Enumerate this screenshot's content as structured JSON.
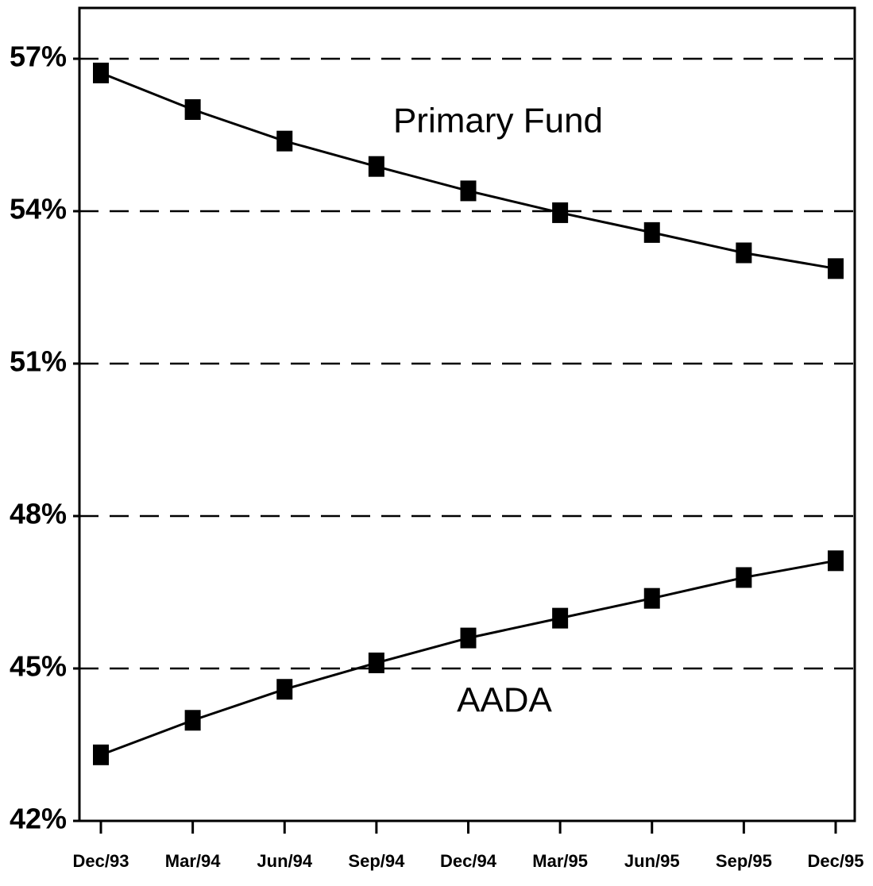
{
  "chart_data": {
    "type": "line",
    "categories": [
      "Dec/93",
      "Mar/94",
      "Jun/94",
      "Sep/94",
      "Dec/94",
      "Mar/95",
      "Jun/95",
      "Sep/95",
      "Dec/95"
    ],
    "series": [
      {
        "name": "Primary Fund",
        "color": "#000000",
        "values": [
          56.72,
          56.0,
          55.38,
          54.88,
          54.4,
          53.97,
          53.58,
          53.18,
          52.87
        ]
      },
      {
        "name": "AADA",
        "color": "#000000",
        "values": [
          43.3,
          43.98,
          44.59,
          45.11,
          45.6,
          45.99,
          46.38,
          46.79,
          47.12
        ]
      }
    ],
    "ylim": [
      42,
      58
    ],
    "yticks": [
      {
        "value": 42,
        "label": "42%"
      },
      {
        "value": 45,
        "label": "45%"
      },
      {
        "value": 48,
        "label": "48%"
      },
      {
        "value": 51,
        "label": "51%"
      },
      {
        "value": 54,
        "label": "54%"
      },
      {
        "value": 57,
        "label": "57%"
      }
    ],
    "grid": true
  }
}
